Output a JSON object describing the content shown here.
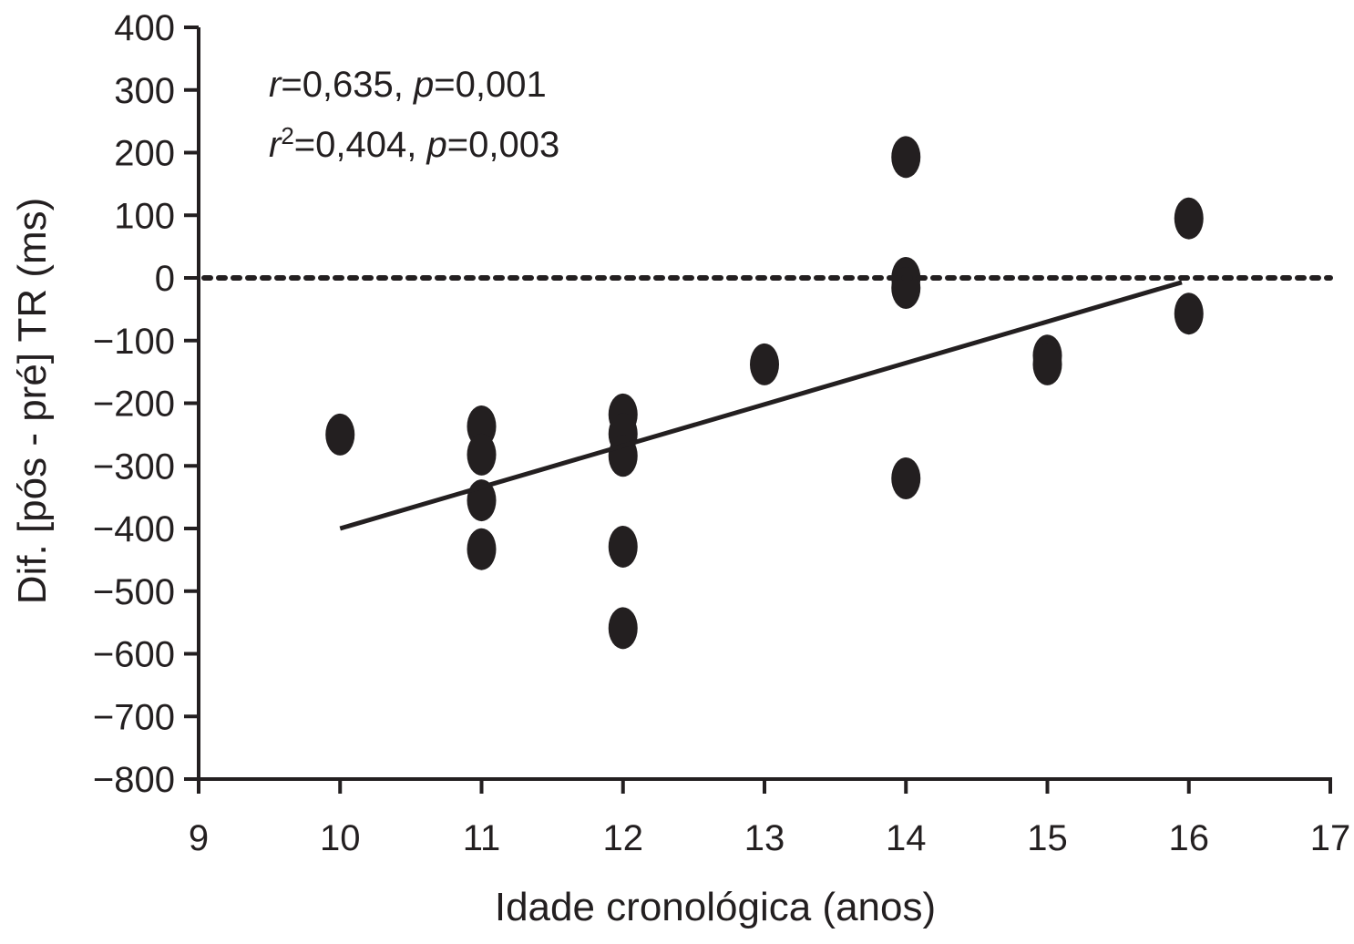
{
  "chart_data": {
    "type": "scatter",
    "title": "",
    "xlabel": "Idade cronológica (anos)",
    "ylabel": "Dif. [pós - pré] TR (ms)",
    "xlim": [
      9,
      17
    ],
    "ylim": [
      -800,
      400
    ],
    "x_ticks": [
      9,
      10,
      11,
      12,
      13,
      14,
      15,
      16,
      17
    ],
    "y_ticks": [
      400,
      300,
      200,
      100,
      0,
      -100,
      -200,
      -300,
      -400,
      -500,
      -600,
      -700,
      -800
    ],
    "y_tick_labels": [
      "400",
      "300",
      "200",
      "100",
      "0",
      "−100",
      "−200",
      "−300",
      "−400",
      "−500",
      "−600",
      "−700",
      "−800"
    ],
    "grid": false,
    "points": [
      {
        "x": 10,
        "y": -250
      },
      {
        "x": 11,
        "y": -237
      },
      {
        "x": 11,
        "y": -282
      },
      {
        "x": 11,
        "y": -355
      },
      {
        "x": 11,
        "y": -433
      },
      {
        "x": 12,
        "y": -218
      },
      {
        "x": 12,
        "y": -249
      },
      {
        "x": 12,
        "y": -284
      },
      {
        "x": 12,
        "y": -429
      },
      {
        "x": 12,
        "y": -559
      },
      {
        "x": 13,
        "y": -138
      },
      {
        "x": 14,
        "y": 193
      },
      {
        "x": 14,
        "y": 0
      },
      {
        "x": 14,
        "y": -16
      },
      {
        "x": 14,
        "y": -320
      },
      {
        "x": 15,
        "y": -124
      },
      {
        "x": 15,
        "y": -138
      },
      {
        "x": 16,
        "y": 95
      },
      {
        "x": 16,
        "y": -57
      }
    ],
    "regression_line": {
      "x": [
        10,
        15.95
      ],
      "y": [
        -400,
        -7
      ]
    },
    "reference_line": {
      "y": 0,
      "style": "dashed"
    },
    "annotations": {
      "line1": {
        "r_label": "r",
        "r_value": "=0,635, ",
        "p_label": "p",
        "p_value": "=0,001"
      },
      "line2": {
        "r_label": "r",
        "r_sup": "2",
        "r_value": "=0,404, ",
        "p_label": "p",
        "p_value": "=0,003"
      }
    },
    "marker_color": "#231f20"
  }
}
